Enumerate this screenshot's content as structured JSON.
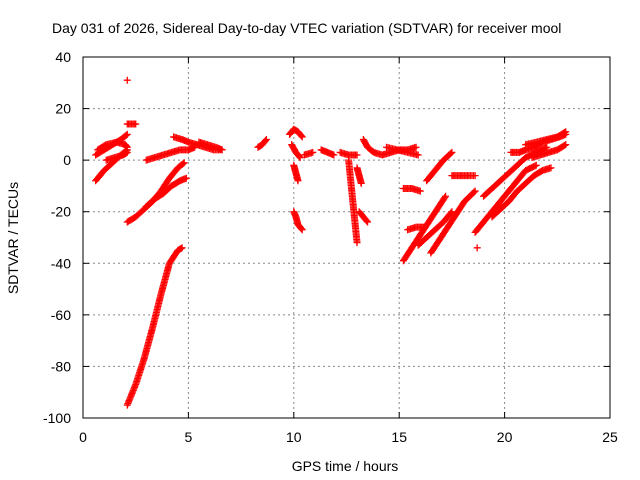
{
  "chart_data": {
    "type": "scatter",
    "title": "Day 031 of 2026, Sidereal Day-to-day VTEC variation (SDTVAR) for receiver mool",
    "xlabel": "GPS time / hours",
    "ylabel": "SDTVAR / TECUs",
    "xlim": [
      0,
      25
    ],
    "ylim": [
      -100,
      40
    ],
    "xticks": [
      0,
      5,
      10,
      15,
      20,
      25
    ],
    "yticks": [
      -100,
      -80,
      -60,
      -40,
      -20,
      0,
      20,
      40
    ],
    "grid": true,
    "marker": "plus",
    "series": [
      {
        "color": "#ff0000",
        "segments": [
          [
            [
              0.6,
              -8
            ],
            [
              1.0,
              -4
            ],
            [
              1.4,
              -1
            ],
            [
              1.8,
              2
            ],
            [
              2.1,
              4
            ]
          ],
          [
            [
              0.6,
              2
            ],
            [
              1.0,
              4
            ],
            [
              1.4,
              6
            ],
            [
              1.8,
              8
            ],
            [
              2.1,
              10
            ]
          ],
          [
            [
              0.7,
              4
            ],
            [
              1.1,
              6
            ],
            [
              1.6,
              7
            ],
            [
              2.0,
              6
            ],
            [
              2.1,
              5
            ]
          ],
          [
            [
              1.1,
              0
            ],
            [
              1.5,
              1
            ],
            [
              1.9,
              2
            ],
            [
              2.1,
              3
            ]
          ],
          [
            [
              2.1,
              14
            ],
            [
              2.3,
              14
            ],
            [
              2.5,
              14
            ]
          ],
          [
            [
              2.1,
              31
            ]
          ],
          [
            [
              2.1,
              -24
            ],
            [
              2.5,
              -22
            ],
            [
              2.9,
              -19
            ],
            [
              3.3,
              -16
            ],
            [
              3.7,
              -12
            ],
            [
              4.1,
              -7
            ],
            [
              4.5,
              -3
            ],
            [
              4.8,
              -1
            ]
          ],
          [
            [
              3.0,
              -18
            ],
            [
              3.4,
              -15
            ],
            [
              3.8,
              -13
            ],
            [
              4.2,
              -10
            ],
            [
              4.6,
              -8
            ],
            [
              4.9,
              -7
            ]
          ],
          [
            [
              2.1,
              -95
            ],
            [
              2.5,
              -87
            ],
            [
              2.9,
              -77
            ],
            [
              3.3,
              -65
            ],
            [
              3.7,
              -52
            ],
            [
              4.1,
              -40
            ],
            [
              4.5,
              -35
            ],
            [
              4.7,
              -34
            ]
          ],
          [
            [
              3.0,
              0
            ],
            [
              3.4,
              1
            ],
            [
              3.8,
              2
            ],
            [
              4.2,
              3
            ],
            [
              4.6,
              4
            ],
            [
              5.0,
              4
            ],
            [
              5.3,
              5
            ]
          ],
          [
            [
              4.3,
              9
            ],
            [
              4.7,
              8
            ],
            [
              5.0,
              7
            ],
            [
              5.4,
              6
            ],
            [
              5.8,
              5
            ],
            [
              6.2,
              4
            ],
            [
              6.5,
              4
            ]
          ],
          [
            [
              5.5,
              7
            ],
            [
              5.9,
              6
            ],
            [
              6.3,
              5
            ],
            [
              6.6,
              4
            ]
          ],
          [
            [
              8.3,
              5
            ],
            [
              8.5,
              6
            ],
            [
              8.7,
              8
            ]
          ],
          [
            [
              9.8,
              10
            ],
            [
              10.0,
              12
            ],
            [
              10.2,
              11
            ],
            [
              10.4,
              9
            ]
          ],
          [
            [
              9.9,
              6
            ],
            [
              10.1,
              3
            ],
            [
              10.3,
              1
            ]
          ],
          [
            [
              10.0,
              -2
            ],
            [
              10.1,
              -5
            ],
            [
              10.2,
              -8
            ]
          ],
          [
            [
              10.0,
              -20
            ],
            [
              10.1,
              -22
            ],
            [
              10.2,
              -25
            ],
            [
              10.4,
              -27
            ]
          ],
          [
            [
              10.5,
              2
            ],
            [
              10.9,
              3
            ]
          ],
          [
            [
              11.3,
              4
            ],
            [
              11.6,
              3
            ],
            [
              11.9,
              2
            ]
          ],
          [
            [
              12.2,
              3
            ],
            [
              12.6,
              2
            ],
            [
              13.0,
              2
            ]
          ],
          [
            [
              12.6,
              0
            ],
            [
              12.7,
              -8
            ],
            [
              12.8,
              -16
            ],
            [
              12.9,
              -24
            ],
            [
              13.0,
              -32
            ]
          ],
          [
            [
              13.0,
              -3
            ],
            [
              13.1,
              -6
            ],
            [
              13.2,
              -9
            ]
          ],
          [
            [
              13.1,
              -20
            ],
            [
              13.3,
              -22
            ],
            [
              13.5,
              -24
            ]
          ],
          [
            [
              13.3,
              8
            ],
            [
              13.5,
              5
            ],
            [
              13.8,
              3
            ],
            [
              14.2,
              2
            ],
            [
              14.6,
              3
            ],
            [
              15.0,
              4
            ],
            [
              15.4,
              4
            ],
            [
              15.8,
              5
            ]
          ],
          [
            [
              14.4,
              5
            ],
            [
              14.9,
              4
            ],
            [
              15.4,
              3
            ],
            [
              15.9,
              2
            ]
          ],
          [
            [
              15.2,
              -11
            ],
            [
              15.6,
              -11
            ],
            [
              16.0,
              -12
            ]
          ],
          [
            [
              15.2,
              -39
            ],
            [
              15.6,
              -34
            ],
            [
              16.0,
              -29
            ],
            [
              16.4,
              -24
            ],
            [
              16.8,
              -19
            ],
            [
              17.2,
              -14
            ]
          ],
          [
            [
              15.4,
              -27
            ],
            [
              15.8,
              -26
            ],
            [
              16.2,
              -26
            ]
          ],
          [
            [
              15.9,
              -33
            ],
            [
              16.3,
              -30
            ],
            [
              16.7,
              -27
            ],
            [
              17.1,
              -24
            ],
            [
              17.5,
              -20
            ]
          ],
          [
            [
              16.3,
              -8
            ],
            [
              16.7,
              -4
            ],
            [
              17.1,
              0
            ],
            [
              17.5,
              3
            ]
          ],
          [
            [
              16.5,
              -36
            ],
            [
              16.9,
              -31
            ],
            [
              17.3,
              -26
            ],
            [
              17.7,
              -21
            ],
            [
              18.1,
              -16
            ],
            [
              18.6,
              -12
            ]
          ],
          [
            [
              17.5,
              -6
            ],
            [
              17.9,
              -6
            ],
            [
              18.3,
              -6
            ],
            [
              18.6,
              -6
            ]
          ],
          [
            [
              18.6,
              -28
            ],
            [
              19.0,
              -24
            ],
            [
              19.4,
              -20
            ],
            [
              19.8,
              -16
            ],
            [
              20.2,
              -12
            ],
            [
              20.6,
              -8
            ],
            [
              21.0,
              -4
            ],
            [
              21.5,
              -2
            ]
          ],
          [
            [
              18.7,
              -34
            ]
          ],
          [
            [
              19.0,
              -14
            ],
            [
              19.4,
              -11
            ],
            [
              19.8,
              -8
            ],
            [
              20.2,
              -5
            ],
            [
              20.6,
              -2
            ],
            [
              21.0,
              1
            ],
            [
              21.5,
              3
            ],
            [
              22.0,
              5
            ]
          ],
          [
            [
              19.4,
              -22
            ],
            [
              19.8,
              -19
            ],
            [
              20.2,
              -16
            ],
            [
              20.6,
              -12
            ],
            [
              21.0,
              -9
            ],
            [
              21.4,
              -6
            ],
            [
              21.8,
              -4
            ],
            [
              22.2,
              -3
            ]
          ],
          [
            [
              20.3,
              3
            ],
            [
              20.7,
              3
            ],
            [
              21.0,
              4
            ],
            [
              21.4,
              5
            ],
            [
              21.8,
              7
            ],
            [
              22.2,
              8
            ],
            [
              22.6,
              9
            ],
            [
              22.9,
              10
            ]
          ],
          [
            [
              21.0,
              6
            ],
            [
              21.5,
              7
            ],
            [
              22.0,
              8
            ],
            [
              22.5,
              9
            ],
            [
              22.9,
              11
            ]
          ],
          [
            [
              21.3,
              1
            ],
            [
              21.7,
              2
            ],
            [
              22.1,
              3
            ],
            [
              22.5,
              4
            ],
            [
              22.9,
              6
            ]
          ]
        ]
      }
    ]
  }
}
